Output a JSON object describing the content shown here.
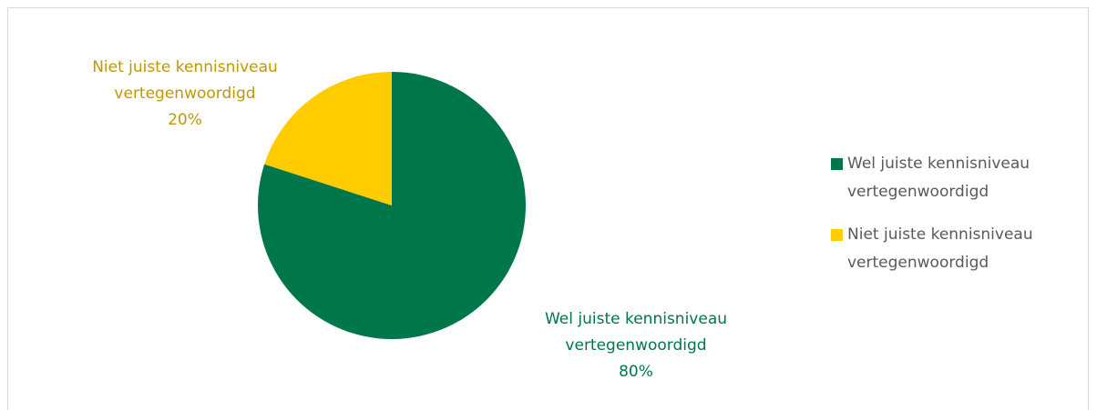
{
  "chart_data": {
    "type": "pie",
    "categories": [
      "Wel juiste kennisniveau vertegenwoordigd",
      "Niet juiste kennisniveau vertegenwoordigd"
    ],
    "values": [
      80,
      20
    ],
    "value_labels": [
      "80%",
      "20%"
    ],
    "colors": [
      "#00774a",
      "#ffcc00"
    ],
    "legend": "right"
  }
}
